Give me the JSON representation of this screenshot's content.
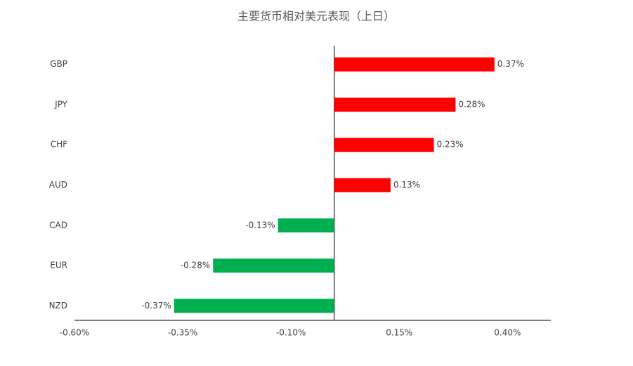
{
  "chart_data": {
    "type": "hbar",
    "title": "主要货币相对美元表现（上日）",
    "categories": [
      "GBP",
      "JPY",
      "CHF",
      "AUD",
      "CAD",
      "EUR",
      "NZD"
    ],
    "values": [
      0.37,
      0.28,
      0.23,
      0.13,
      -0.13,
      -0.28,
      -0.37
    ],
    "value_labels": [
      "0.37%",
      "0.28%",
      "0.23%",
      "0.13%",
      "-0.13%",
      "-0.28%",
      "-0.37%"
    ],
    "positive_color": "#ff0000",
    "negative_color": "#00b050",
    "xlim": [
      -0.6,
      0.5
    ],
    "xticks": [
      {
        "value": -0.6,
        "label": "-0.60%"
      },
      {
        "value": -0.35,
        "label": "-0.35%"
      },
      {
        "value": -0.1,
        "label": "-0.10%"
      },
      {
        "value": 0.15,
        "label": "0.15%"
      },
      {
        "value": 0.4,
        "label": "0.40%"
      }
    ],
    "grid": false
  }
}
